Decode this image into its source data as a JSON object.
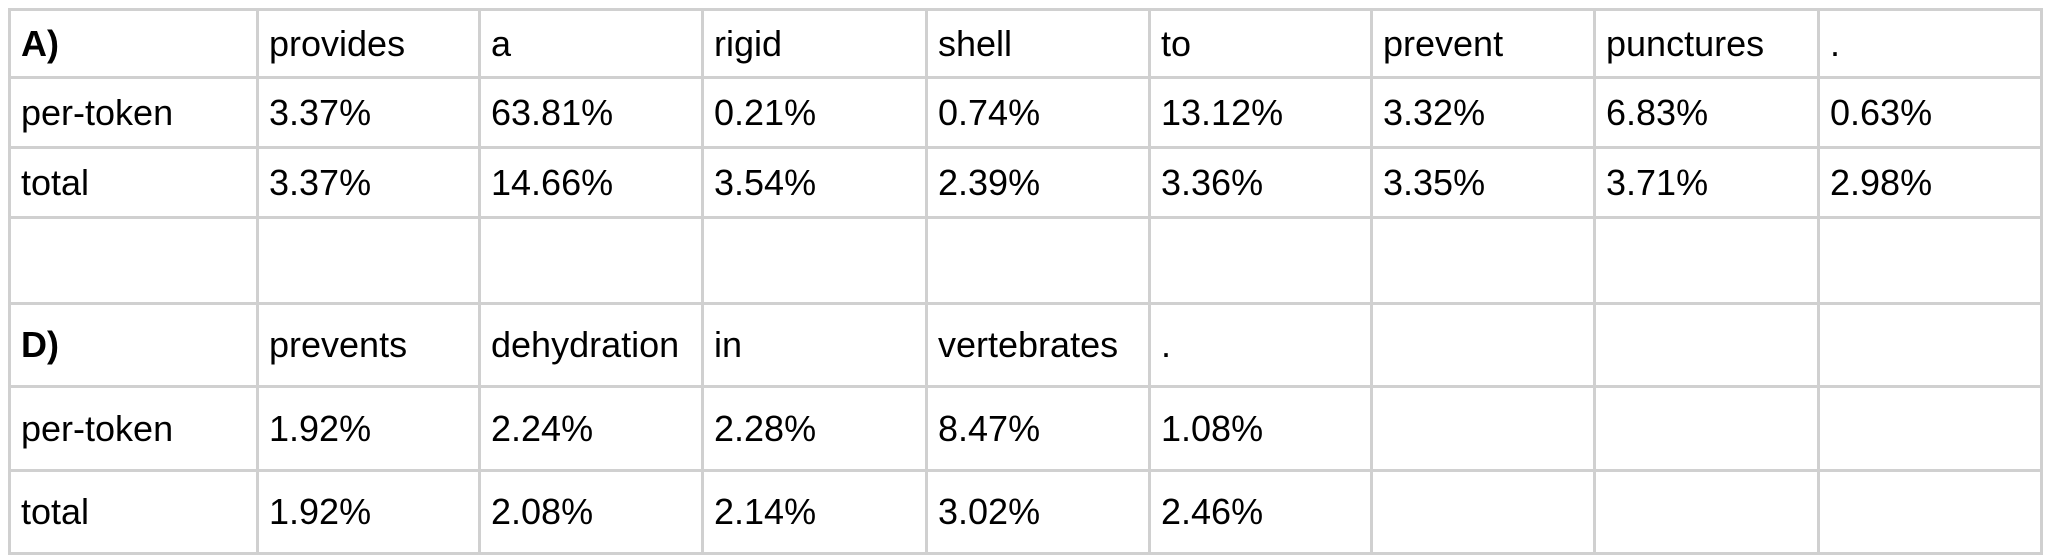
{
  "blocks": [
    {
      "label": "A)",
      "tokens": [
        "provides",
        "a",
        "rigid",
        "shell",
        "to",
        "prevent",
        "punctures",
        "."
      ],
      "rows": [
        {
          "name": "per-token",
          "values": [
            "3.37%",
            "63.81%",
            "0.21%",
            "0.74%",
            "13.12%",
            "3.32%",
            "6.83%",
            "0.63%"
          ]
        },
        {
          "name": "total",
          "values": [
            "3.37%",
            "14.66%",
            "3.54%",
            "2.39%",
            "3.36%",
            "3.35%",
            "3.71%",
            "2.98%"
          ]
        }
      ]
    },
    {
      "label": "D)",
      "tokens": [
        "prevents",
        "dehydration",
        "in",
        "vertebrates",
        "."
      ],
      "rows": [
        {
          "name": "per-token",
          "values": [
            "1.92%",
            "2.24%",
            "2.28%",
            "8.47%",
            "1.08%"
          ]
        },
        {
          "name": "total",
          "values": [
            "1.92%",
            "2.08%",
            "2.14%",
            "3.02%",
            "2.46%"
          ]
        }
      ]
    }
  ]
}
